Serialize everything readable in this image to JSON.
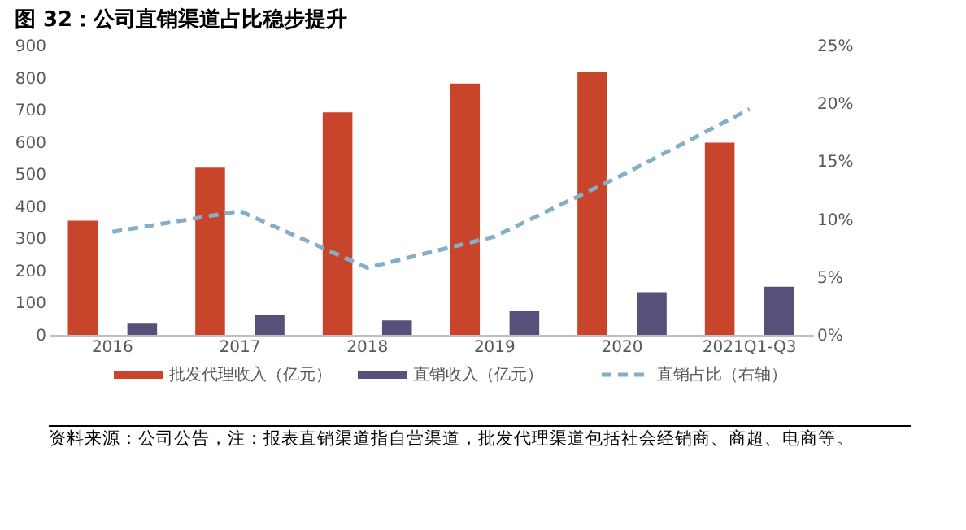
{
  "chart_data": {
    "type": "bar",
    "title": "图 32：公司直销渠道占比稳步提升",
    "categories": [
      "2016",
      "2017",
      "2018",
      "2019",
      "2020",
      "2021Q1-Q3"
    ],
    "series": [
      {
        "name": "批发代理收入（亿元）",
        "color": "#c8442a",
        "values": [
          355,
          520,
          692,
          782,
          818,
          598
        ]
      },
      {
        "name": "直销收入（亿元）",
        "color": "#56507a",
        "values": [
          37,
          63,
          45,
          73,
          133,
          150
        ]
      },
      {
        "name": "直销占比（右轴）",
        "type": "line",
        "axis": "y2",
        "color": "#86afc6",
        "line_style": "dashed",
        "values": [
          8.9,
          10.7,
          5.8,
          8.5,
          13.8,
          19.5
        ]
      }
    ],
    "ylim": [
      0,
      900
    ],
    "yticks": [
      0,
      100,
      200,
      300,
      400,
      500,
      600,
      700,
      800,
      900
    ],
    "y2lim": [
      0,
      25
    ],
    "y2ticks": [
      {
        "value": 0,
        "label": "0%"
      },
      {
        "value": 5,
        "label": "5%"
      },
      {
        "value": 10,
        "label": "10%"
      },
      {
        "value": 15,
        "label": "15%"
      },
      {
        "value": 20,
        "label": "20%"
      },
      {
        "value": 25,
        "label": "25%"
      }
    ],
    "grid": false,
    "legend": "bottom",
    "marker": "none",
    "annotations": [
      "资料来源：公司公告，注：报表直销渠道指自营渠道，批发代理渠道包括社会经销商、商超、电商等。"
    ]
  }
}
